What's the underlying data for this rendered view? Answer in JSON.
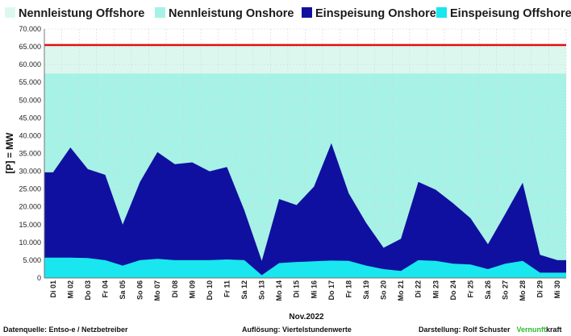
{
  "chart_data": {
    "type": "area",
    "xlabel": "Nov.2022",
    "ylabel": "[P] = MW",
    "ylim": [
      0,
      70000
    ],
    "yticks": [
      "0",
      "5.000",
      "10.000",
      "15.000",
      "20.000",
      "25.000",
      "30.000",
      "35.000",
      "40.000",
      "45.000",
      "50.000",
      "55.000",
      "60.000",
      "65.000",
      "70.000"
    ],
    "categories": [
      "Di 01",
      "Mi 02",
      "Do 03",
      "Fr 04",
      "Sa 05",
      "So 06",
      "Mo 07",
      "Di 08",
      "Mi 09",
      "Do 10",
      "Fr 11",
      "Sa 12",
      "So 13",
      "Mo 14",
      "Di 15",
      "Mi 16",
      "Do 17",
      "Fr 18",
      "Sa 19",
      "So 20",
      "Mo 21",
      "Di 22",
      "Mi 23",
      "Do 24",
      "Fr 25",
      "Sa 26",
      "So 27",
      "Mo 28",
      "Di 29",
      "Mi 30"
    ],
    "legend_position": "top",
    "grid": true,
    "series": [
      {
        "name": "Nennleistung Offshore",
        "color": "#dcf8ee",
        "values": [
          65500,
          65500,
          65500,
          65500,
          65500,
          65500,
          65500,
          65500,
          65500,
          65500,
          65500,
          65500,
          65500,
          65500,
          65500,
          65500,
          65500,
          65500,
          65500,
          65500,
          65500,
          65500,
          65500,
          65500,
          65500,
          65500,
          65500,
          65500,
          65500,
          65500
        ]
      },
      {
        "name": "Nennleistung Onshore",
        "color": "#a6f2e6",
        "values": [
          57500,
          57500,
          57500,
          57500,
          57500,
          57500,
          57500,
          57500,
          57500,
          57500,
          57500,
          57500,
          57500,
          57500,
          57500,
          57500,
          57500,
          57500,
          57500,
          57500,
          57500,
          57500,
          57500,
          57500,
          57500,
          57500,
          57500,
          57500,
          57500,
          57500
        ]
      },
      {
        "name": "Einspeisung Onshore",
        "color": "#1010a0",
        "values": [
          24000,
          31000,
          25000,
          24000,
          11500,
          22000,
          30000,
          27000,
          27500,
          25000,
          26000,
          14000,
          4000,
          18000,
          16000,
          21000,
          33000,
          19000,
          12000,
          6000,
          9000,
          22000,
          20000,
          17000,
          13000,
          7000,
          14000,
          22000,
          5000,
          3500
        ]
      },
      {
        "name": "Einspeisung Offshore",
        "color": "#19e6ee",
        "values": [
          5700,
          5700,
          5600,
          5000,
          3500,
          5000,
          5400,
          5000,
          5000,
          5000,
          5200,
          5000,
          800,
          4200,
          4500,
          4700,
          4900,
          4800,
          3500,
          2500,
          2000,
          5000,
          4800,
          4000,
          3800,
          2500,
          4000,
          4800,
          1500,
          1500
        ]
      }
    ]
  },
  "footer": {
    "source": "Datenquelle:  Entso-e  / Netzbetreiber",
    "resolution": "Auflösung: Viertelstundenwerte",
    "author": "Darstellung:  Rolf Schuster",
    "brand_a": "Vernunft",
    "brand_b": "kraft"
  }
}
